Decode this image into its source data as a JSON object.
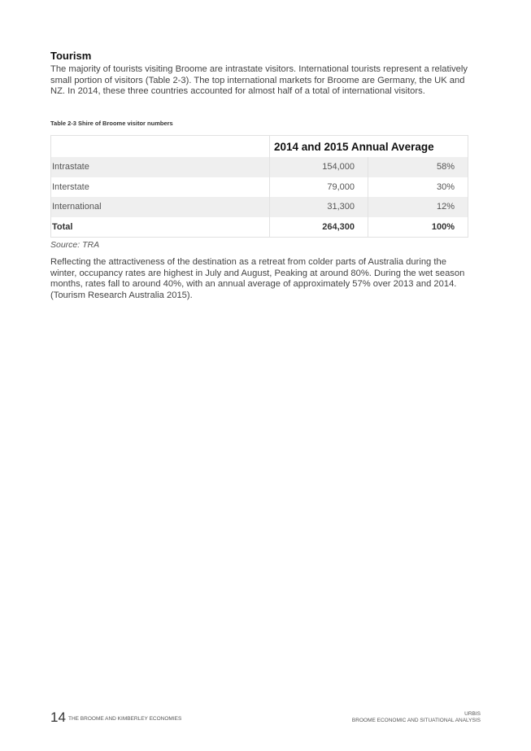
{
  "section": {
    "heading": "Tourism",
    "paragraph1": "The majority of tourists visiting Broome are intrastate visitors. International tourists represent a relatively small portion of visitors (Table 2-3). The top international markets for Broome are Germany, the UK and NZ. In 2014, these three countries accounted for almost half of a total of international visitors.",
    "paragraph2": "Reflecting the attractiveness of the destination as a retreat from colder parts of Australia during the winter, occupancy rates are highest in July and August, Peaking at around 80%. During the wet season months, rates fall to around 40%, with an annual average of approximately 57% over 2013 and 2014. (Tourism Research Australia 2015)."
  },
  "table": {
    "caption": "Table 2-3 Shire of Broome visitor numbers",
    "header": "2014 and 2015 Annual Average",
    "rows": [
      {
        "label": "Intrastate",
        "value": "154,000",
        "share": "58%"
      },
      {
        "label": "Interstate",
        "value": "79,000",
        "share": "30%"
      },
      {
        "label": "International",
        "value": "31,300",
        "share": "12%"
      },
      {
        "label": "Total",
        "value": "264,300",
        "share": "100%"
      }
    ],
    "source": "Source: TRA"
  },
  "footer": {
    "page_number": "14",
    "left_title": "THE BROOME AND KIMBERLEY ECONOMIES",
    "right_brand": "URBIS",
    "right_title": "BROOME ECONOMIC AND SITUATIONAL ANALYSIS"
  }
}
